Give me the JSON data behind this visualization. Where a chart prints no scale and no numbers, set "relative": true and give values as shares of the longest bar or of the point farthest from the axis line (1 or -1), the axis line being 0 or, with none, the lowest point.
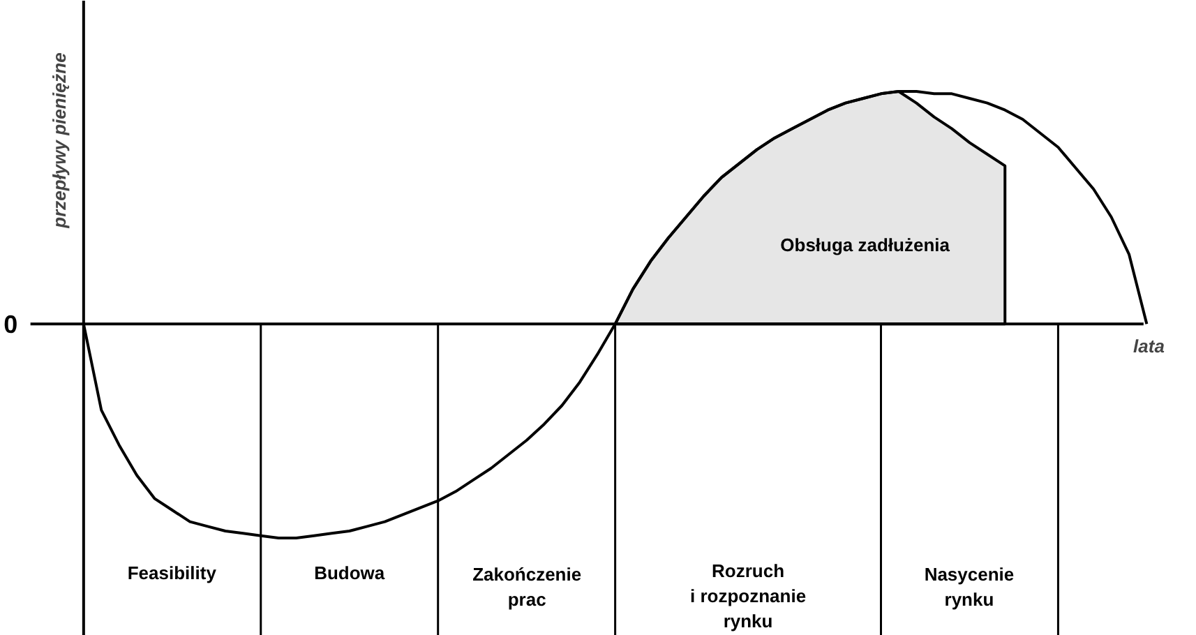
{
  "chart_data": {
    "type": "line",
    "relative": true,
    "xlabel": "lata",
    "ylabel": "przepływy pieniężne",
    "tick_labels": false,
    "grid": false,
    "categories": [
      null,
      null,
      null,
      null,
      null,
      null,
      null,
      null,
      null,
      null,
      null,
      null,
      null,
      null,
      null,
      null,
      null,
      null,
      null,
      null,
      null,
      null,
      null,
      null,
      null,
      null,
      null,
      null,
      null,
      null,
      null,
      null,
      null,
      null,
      null,
      null,
      null,
      null,
      null,
      null,
      null,
      null,
      null,
      null,
      null,
      null,
      null,
      null,
      null,
      null,
      null,
      null,
      null,
      null,
      null,
      null,
      null,
      null,
      null,
      null,
      null
    ],
    "series": [
      {
        "type": "area",
        "color": "#e6e6e6",
        "values": [
          null,
          null,
          null,
          null,
          null,
          null,
          null,
          null,
          null,
          null,
          null,
          null,
          null,
          null,
          null,
          null,
          null,
          null,
          null,
          null,
          null,
          null,
          null,
          null,
          null,
          null,
          null,
          null,
          null,
          null,
          0,
          0.15,
          0.27,
          0.37,
          0.46,
          0.55,
          0.63,
          0.69,
          0.75,
          0.8,
          0.84,
          0.88,
          0.92,
          0.95,
          0.97,
          0.99,
          1.0,
          0.95,
          0.89,
          0.84,
          0.78,
          0.73,
          0.68,
          null,
          null,
          null,
          null,
          null,
          null,
          null,
          null
        ]
      },
      {
        "color": "#000000",
        "values": [
          0,
          -0.37,
          -0.52,
          -0.65,
          -0.75,
          -0.8,
          -0.85,
          -0.87,
          -0.89,
          -0.9,
          -0.91,
          -0.92,
          -0.92,
          -0.91,
          -0.9,
          -0.89,
          -0.87,
          -0.85,
          -0.82,
          -0.79,
          -0.76,
          -0.72,
          -0.67,
          -0.62,
          -0.56,
          -0.5,
          -0.43,
          -0.35,
          -0.25,
          -0.13,
          0,
          0.15,
          0.27,
          0.37,
          0.46,
          0.55,
          0.63,
          0.69,
          0.75,
          0.8,
          0.84,
          0.88,
          0.92,
          0.95,
          0.97,
          0.99,
          1.0,
          1.0,
          0.99,
          0.99,
          0.97,
          0.95,
          0.92,
          0.88,
          0.82,
          0.76,
          0.67,
          0.58,
          0.46,
          0.3,
          0
        ]
      }
    ],
    "annotations": [
      "0",
      "Obsługa zadłużenia",
      "Feasibility",
      "Budowa",
      "Zakończenie\nprac",
      "Rozruch\ni rozpoznanie\nrynku",
      "Nasycenie\nrynku"
    ]
  }
}
